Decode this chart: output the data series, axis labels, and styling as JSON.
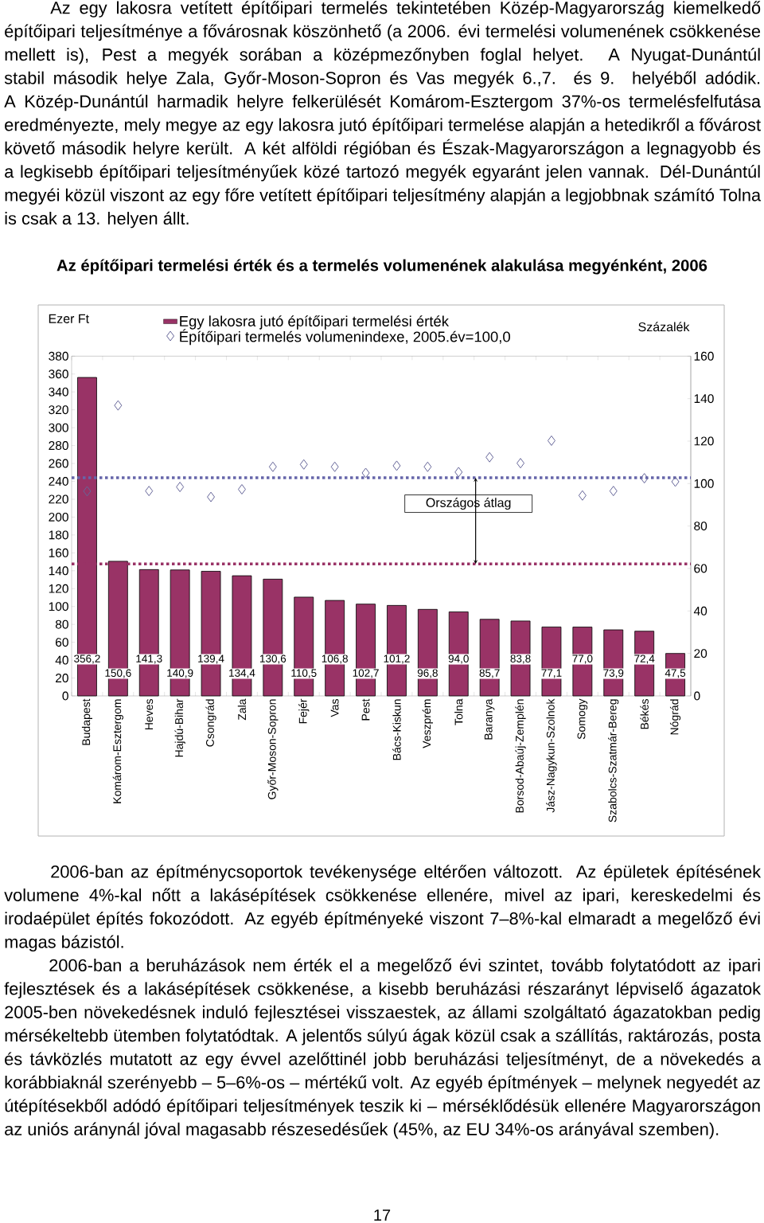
{
  "chart_data": {
    "type": "bar",
    "title": "Az építőipari termelési érték és a termelés volumenének alakulása megyénként, 2006",
    "ylabel": "Ezer Ft",
    "y2label": "Százalék",
    "categories": [
      "Budapest",
      "Komárom-Esztergom",
      "Heves",
      "Hajdú-Bihar",
      "Csongrád",
      "Zala",
      "Győr-Moson-Sopron",
      "Fejér",
      "Vas",
      "Pest",
      "Bács-Kiskun",
      "Veszprém",
      "Tolna",
      "Baranya",
      "Borsod-Abaúj-Zemplén",
      "Jász-Nagykun-Szolnok",
      "Somogy",
      "Szabolcs-Szatmár-Bereg",
      "Békés",
      "Nógrád"
    ],
    "series": [
      {
        "name": "Egy lakosra jutó építőipari termelési érték",
        "color": "#993366",
        "values": [
          356.2,
          150.6,
          141.3,
          140.9,
          139.4,
          134.4,
          130.6,
          110.5,
          106.8,
          102.7,
          101.2,
          96.8,
          94.0,
          85.7,
          83.8,
          77.1,
          77.0,
          73.9,
          72.4,
          47.5
        ],
        "value_labels": [
          "356,2",
          "150,6",
          "141,3",
          "140,9",
          "139,4",
          "134,4",
          "130,6",
          "110,5",
          "106,8",
          "102,7",
          "101,2",
          "96,8",
          "94,0",
          "85,7",
          "83,8",
          "77,1",
          "77,0",
          "73,9",
          "72,4",
          "47,5"
        ]
      },
      {
        "name": "Építőipari termelés volumenindexe, 2005.év=100,0",
        "type": "scatter",
        "axis": "y2",
        "color": "#666699",
        "values": [
          96.4,
          136.8,
          96.5,
          98.4,
          93.7,
          97.3,
          107.9,
          109.0,
          107.9,
          105.0,
          108.4,
          107.9,
          105.4,
          112.4,
          109.6,
          120.2,
          94.4,
          96.5,
          102.5,
          100.9
        ]
      }
    ],
    "marker": "diamond",
    "legend": "top left",
    "ylim": [
      0,
      380
    ],
    "yticks": [
      0,
      20,
      40,
      60,
      80,
      100,
      120,
      140,
      160,
      180,
      200,
      220,
      240,
      260,
      280,
      300,
      320,
      340,
      360,
      380
    ],
    "y2lim": [
      0,
      160
    ],
    "y2ticks": [
      0,
      20,
      40,
      60,
      80,
      100,
      120,
      140,
      160
    ],
    "ref_lines": [
      {
        "axis": "y",
        "value": 147.6,
        "color": "#993366",
        "line_style": "dotted"
      },
      {
        "axis": "y2",
        "value": 102.7,
        "color": "#6666aa",
        "line_style": "dotted",
        "label": "Országos átlag"
      }
    ],
    "annotations": [
      "Az egy lakosra vetített építőipari termelés tekintetében Közép-Magyarország kiemelkedő építőipari teljesítménye a fővárosnak köszönhető (a 2006. évi termelési volumenének csökkenése mellett is), Pest a megyék sorában a középmezőnyben foglal helyet. A Nyugat-Dunántúl stabil második helye Zala, Győr-Moson-Sopron és Vas megyék 6.,7. és 9. helyéből adódik. A Közép-Dunántúl harmadik helyre felkerülését Komárom-Esztergom 37%-os termelésfelfutása eredményezte, mely megye az egy lakosra jutó építőipari termelése alapján a hetedikről a fővárost követő második helyre került. A két alföldi régióban és Észak-Magyarországon a legnagyobb és a legkisebb építőipari teljesítményűek közé tartozó megyék egyaránt jelen vannak. Dél-Dunántúl megyéi közül viszont az egy főre vetített építőipari teljesítmény alapján a legjobbnak számító Tolna is csak a 13. helyen állt.",
      "2006-ban az építménycsoportok tevékenysége eltérően változott. Az épületek építésének volumene 4%-kal nőtt a lakásépítések csökkenése ellenére, mivel az ipari, kereskedelmi és irodaépület építés fokozódott. Az egyéb építményeké viszont 7–8%-kal elmaradt a megelőző évi magas bázistól.",
      "2006-ban a beruházások nem érték el a megelőző évi szintet, tovább folytatódott az ipari fejlesztések és a lakásépítések csökkenése, a kisebb beruházási részarányt lépviselő ágazatok 2005-ben növekedésnek induló fejlesztései visszaestek, az állami szolgáltató ágazatokban pedig mérsékeltebb ütemben folytatódtak. A jelentős súlyú ágak közül csak a szállítás, raktározás, posta és távközlés mutatott az egy évvel azelőttinél jobb beruházási teljesítményt, de a növekedés a korábbiaknál szerényebb – 5–6%-os – mértékű volt. Az egyéb építmények – melynek negyedét az útépítésekből adódó építőipari teljesítmények teszik ki – mérséklődésük ellenére Magyarországon az uniós aránynál jóval magasabb részesedésűek (45%, az EU 34%-os arányával szemben).",
      "17"
    ]
  }
}
